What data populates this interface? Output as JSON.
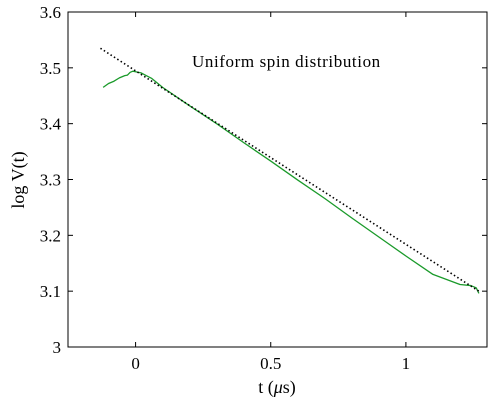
{
  "chart_data": {
    "type": "line",
    "title": "",
    "annotation": "Uniform spin distribution",
    "xlabel_main": "t (",
    "xlabel_greek": "μ",
    "xlabel_tail": "s)",
    "ylabel": "log V(t)",
    "xlim": [
      -0.25,
      1.3
    ],
    "ylim": [
      3.0,
      3.6
    ],
    "x_ticks": [
      0,
      0.5,
      1
    ],
    "x_tick_labels": [
      "0",
      "0.5",
      "1"
    ],
    "y_ticks": [
      3.0,
      3.1,
      3.2,
      3.3,
      3.4,
      3.5,
      3.6
    ],
    "y_tick_labels": [
      "3",
      "3.1",
      "3.2",
      "3.3",
      "3.4",
      "3.5",
      "3.6"
    ],
    "grid": false,
    "colors": {
      "measured": "#1a9a2a",
      "fit": "#000000"
    },
    "series": [
      {
        "style": "solid",
        "x": [
          -0.12,
          -0.1,
          -0.08,
          -0.06,
          -0.04,
          -0.03,
          -0.02,
          -0.01,
          0.0,
          0.02,
          0.04,
          0.06,
          0.1,
          0.2,
          0.3,
          0.4,
          0.5,
          0.6,
          0.7,
          0.8,
          0.9,
          1.0,
          1.1,
          1.2,
          1.24,
          1.26,
          1.27
        ],
        "y": [
          3.465,
          3.472,
          3.476,
          3.482,
          3.486,
          3.487,
          3.492,
          3.494,
          3.493,
          3.491,
          3.486,
          3.481,
          3.465,
          3.432,
          3.4,
          3.366,
          3.333,
          3.299,
          3.266,
          3.231,
          3.197,
          3.163,
          3.13,
          3.112,
          3.11,
          3.106,
          3.096
        ]
      },
      {
        "style": "dotted",
        "x": [
          -0.13,
          1.27
        ],
        "y": [
          3.535,
          3.1
        ]
      }
    ]
  }
}
